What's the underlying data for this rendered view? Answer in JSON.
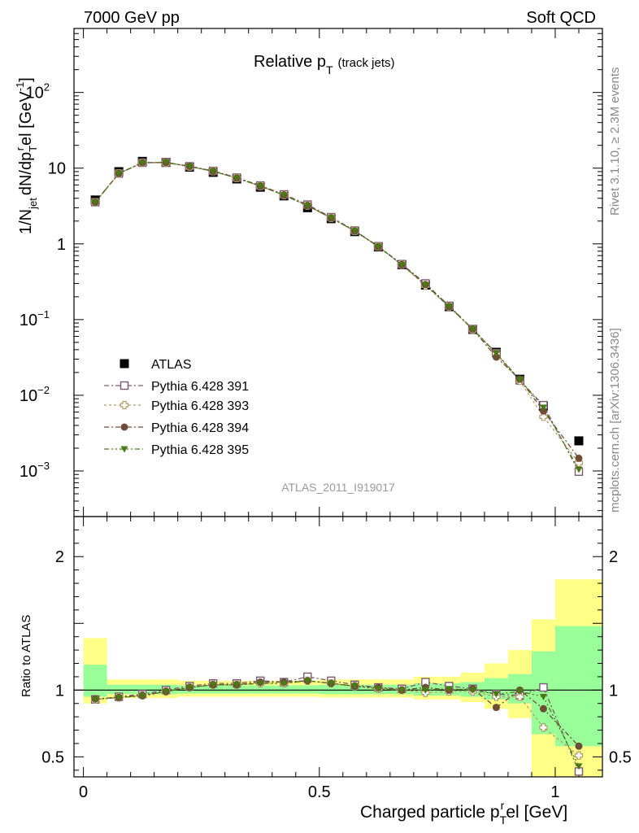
{
  "header": {
    "left": "7000 GeV pp",
    "right": "Soft QCD"
  },
  "side": {
    "upper": "Rivet 3.1.10, ≥ 2.3M events",
    "lower": "mcplots.cern.ch [arXiv:1306.3436]"
  },
  "watermark": "ATLAS_2011_I919017",
  "chart_data": [
    {
      "type": "scatter",
      "title": "Relative p_T (track jets)",
      "ylabel": "1/N_jet dN/dp_T^rel [GeV^-1]",
      "xlim": [
        -0.02,
        1.1
      ],
      "ylim": [
        0.00025,
        700
      ],
      "yscale": "log",
      "yticks": [
        {
          "v": 0.001,
          "b": "10",
          "e": "−3"
        },
        {
          "v": 0.01,
          "b": "10",
          "e": "−2"
        },
        {
          "v": 0.1,
          "b": "10",
          "e": "−1"
        },
        {
          "v": 1,
          "b": "1",
          "e": ""
        },
        {
          "v": 10,
          "b": "10",
          "e": ""
        },
        {
          "v": 100,
          "b": "10",
          "e": "2"
        }
      ],
      "legend_position": "left-center",
      "x": [
        0.025,
        0.075,
        0.125,
        0.175,
        0.225,
        0.275,
        0.325,
        0.375,
        0.425,
        0.475,
        0.525,
        0.575,
        0.625,
        0.675,
        0.725,
        0.775,
        0.825,
        0.875,
        0.925,
        0.975,
        1.05
      ],
      "series": [
        {
          "name": "ATLAS",
          "color": "#000000",
          "marker": "square-filled",
          "values": [
            3.8,
            9.0,
            12.3,
            11.9,
            10.3,
            8.8,
            7.2,
            5.6,
            4.3,
            3.0,
            2.15,
            1.45,
            0.91,
            0.53,
            0.285,
            0.148,
            0.074,
            0.037,
            0.0163,
            0.0072,
            0.0025
          ]
        },
        {
          "name": "Pythia 6.428 391",
          "color": "#7a5a6e",
          "marker": "square-open",
          "dash": "6,3,2,3",
          "values": [
            3.55,
            8.5,
            11.8,
            11.9,
            10.6,
            9.2,
            7.5,
            5.9,
            4.5,
            3.3,
            2.25,
            1.5,
            0.93,
            0.54,
            0.3,
            0.152,
            0.075,
            0.036,
            0.0157,
            0.0074,
            0.00098
          ]
        },
        {
          "name": "Pythia 6.428 393",
          "color": "#b39a6a",
          "marker": "cross-open",
          "dash": "3,3",
          "values": [
            3.55,
            8.5,
            11.8,
            11.8,
            10.5,
            9.1,
            7.4,
            5.8,
            4.4,
            3.2,
            2.2,
            1.48,
            0.92,
            0.53,
            0.28,
            0.148,
            0.074,
            0.035,
            0.0155,
            0.0052,
            0.00128
          ]
        },
        {
          "name": "Pythia 6.428 394",
          "color": "#6e4e38",
          "marker": "circle-filled",
          "dash": "6,3,2,3",
          "values": [
            3.55,
            8.5,
            11.8,
            11.9,
            10.6,
            9.1,
            7.4,
            5.8,
            4.4,
            3.2,
            2.2,
            1.48,
            0.92,
            0.53,
            0.29,
            0.148,
            0.075,
            0.032,
            0.0163,
            0.0062,
            0.00147
          ]
        },
        {
          "name": "Pythia 6.428 395",
          "color": "#4a7a14",
          "marker": "triangle-down-filled",
          "dash": "6,3,2,3,2,3",
          "values": [
            3.55,
            8.5,
            11.8,
            11.9,
            10.5,
            9.1,
            7.4,
            5.8,
            4.4,
            3.2,
            2.2,
            1.48,
            0.92,
            0.53,
            0.288,
            0.15,
            0.075,
            0.036,
            0.0161,
            0.0069,
            0.00105
          ]
        }
      ]
    },
    {
      "type": "scatter",
      "xlabel": "Charged particle p_T^rel [GeV]",
      "ylabel": "Ratio to ATLAS",
      "xlim": [
        -0.02,
        1.1
      ],
      "ylim": [
        0.35,
        2.3
      ],
      "yticks": [
        0.5,
        1,
        2
      ],
      "xticks": [
        "0",
        "0.5",
        "1"
      ],
      "band_edges": [
        0,
        0.05,
        0.1,
        0.15,
        0.2,
        0.25,
        0.3,
        0.35,
        0.4,
        0.45,
        0.5,
        0.55,
        0.6,
        0.65,
        0.7,
        0.75,
        0.8,
        0.85,
        0.9,
        0.95,
        1.0,
        1.1
      ],
      "band_green": [
        [
          0.95,
          1.19
        ],
        [
          0.97,
          1.04
        ],
        [
          0.97,
          1.04
        ],
        [
          0.97,
          1.04
        ],
        [
          0.975,
          1.035
        ],
        [
          0.975,
          1.035
        ],
        [
          0.975,
          1.035
        ],
        [
          0.975,
          1.035
        ],
        [
          0.975,
          1.035
        ],
        [
          0.975,
          1.035
        ],
        [
          0.97,
          1.04
        ],
        [
          0.97,
          1.04
        ],
        [
          0.97,
          1.04
        ],
        [
          0.97,
          1.04
        ],
        [
          0.96,
          1.05
        ],
        [
          0.96,
          1.05
        ],
        [
          0.95,
          1.06
        ],
        [
          0.93,
          1.09
        ],
        [
          0.9,
          1.12
        ],
        [
          0.67,
          1.29
        ],
        [
          0.58,
          1.48
        ]
      ],
      "band_yellow": [
        [
          0.9,
          1.39
        ],
        [
          0.94,
          1.08
        ],
        [
          0.94,
          1.08
        ],
        [
          0.94,
          1.08
        ],
        [
          0.95,
          1.07
        ],
        [
          0.95,
          1.07
        ],
        [
          0.95,
          1.07
        ],
        [
          0.95,
          1.07
        ],
        [
          0.95,
          1.07
        ],
        [
          0.95,
          1.07
        ],
        [
          0.945,
          1.08
        ],
        [
          0.945,
          1.08
        ],
        [
          0.945,
          1.08
        ],
        [
          0.945,
          1.08
        ],
        [
          0.93,
          1.1
        ],
        [
          0.93,
          1.1
        ],
        [
          0.91,
          1.13
        ],
        [
          0.86,
          1.2
        ],
        [
          0.79,
          1.3
        ],
        [
          0.35,
          1.53
        ],
        [
          0.35,
          1.83
        ]
      ],
      "series": [
        {
          "name": "Pythia 6.428 391",
          "values": [
            0.93,
            0.95,
            0.97,
            1.0,
            1.03,
            1.05,
            1.05,
            1.07,
            1.06,
            1.1,
            1.07,
            1.04,
            1.02,
            1.01,
            1.06,
            1.03,
            1.01,
            0.97,
            0.96,
            1.02,
            0.39
          ]
        },
        {
          "name": "Pythia 6.428 393",
          "values": [
            0.93,
            0.945,
            0.96,
            0.99,
            1.02,
            1.04,
            1.04,
            1.05,
            1.05,
            1.07,
            1.05,
            1.03,
            1.01,
            1.0,
            0.98,
            0.99,
            0.99,
            0.95,
            0.95,
            0.72,
            0.51
          ]
        },
        {
          "name": "Pythia 6.428 394",
          "values": [
            0.935,
            0.945,
            0.96,
            0.99,
            1.02,
            1.04,
            1.04,
            1.06,
            1.06,
            1.07,
            1.05,
            1.03,
            1.02,
            1.0,
            1.02,
            1.0,
            1.01,
            0.87,
            1.0,
            0.86,
            0.58
          ]
        },
        {
          "name": "Pythia 6.428 395",
          "values": [
            0.93,
            0.945,
            0.955,
            0.99,
            1.02,
            1.04,
            1.04,
            1.05,
            1.05,
            1.07,
            1.05,
            1.03,
            1.01,
            1.0,
            1.0,
            1.01,
            1.0,
            0.97,
            0.99,
            0.95,
            0.43
          ]
        }
      ]
    }
  ]
}
